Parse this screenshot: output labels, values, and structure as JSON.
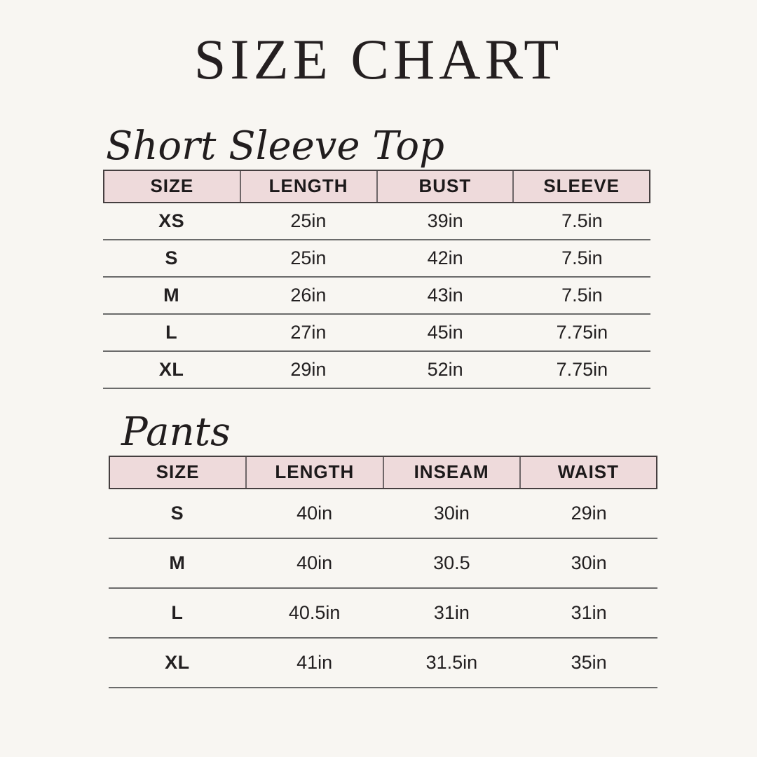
{
  "page": {
    "title": "SIZE CHART",
    "background_color": "#f8f6f2",
    "header_fill_color": "#eedadb",
    "text_color": "#211d1e"
  },
  "chart_data": [
    {
      "type": "table",
      "title": "Short Sleeve Top",
      "columns": [
        "SIZE",
        "LENGTH",
        "BUST",
        "SLEEVE"
      ],
      "rows": [
        [
          "XS",
          "25in",
          "39in",
          "7.5in"
        ],
        [
          "S",
          "25in",
          "42in",
          "7.5in"
        ],
        [
          "M",
          "26in",
          "43in",
          "7.5in"
        ],
        [
          "L",
          "27in",
          "45in",
          "7.75in"
        ],
        [
          "XL",
          "29in",
          "52in",
          "7.75in"
        ]
      ]
    },
    {
      "type": "table",
      "title": "Pants",
      "columns": [
        "SIZE",
        "LENGTH",
        "INSEAM",
        "WAIST"
      ],
      "rows": [
        [
          "S",
          "40in",
          "30in",
          "29in"
        ],
        [
          "M",
          "40in",
          "30.5",
          "30in"
        ],
        [
          "L",
          "40.5in",
          "31in",
          "31in"
        ],
        [
          "XL",
          "41in",
          "31.5in",
          "35in"
        ]
      ]
    }
  ]
}
